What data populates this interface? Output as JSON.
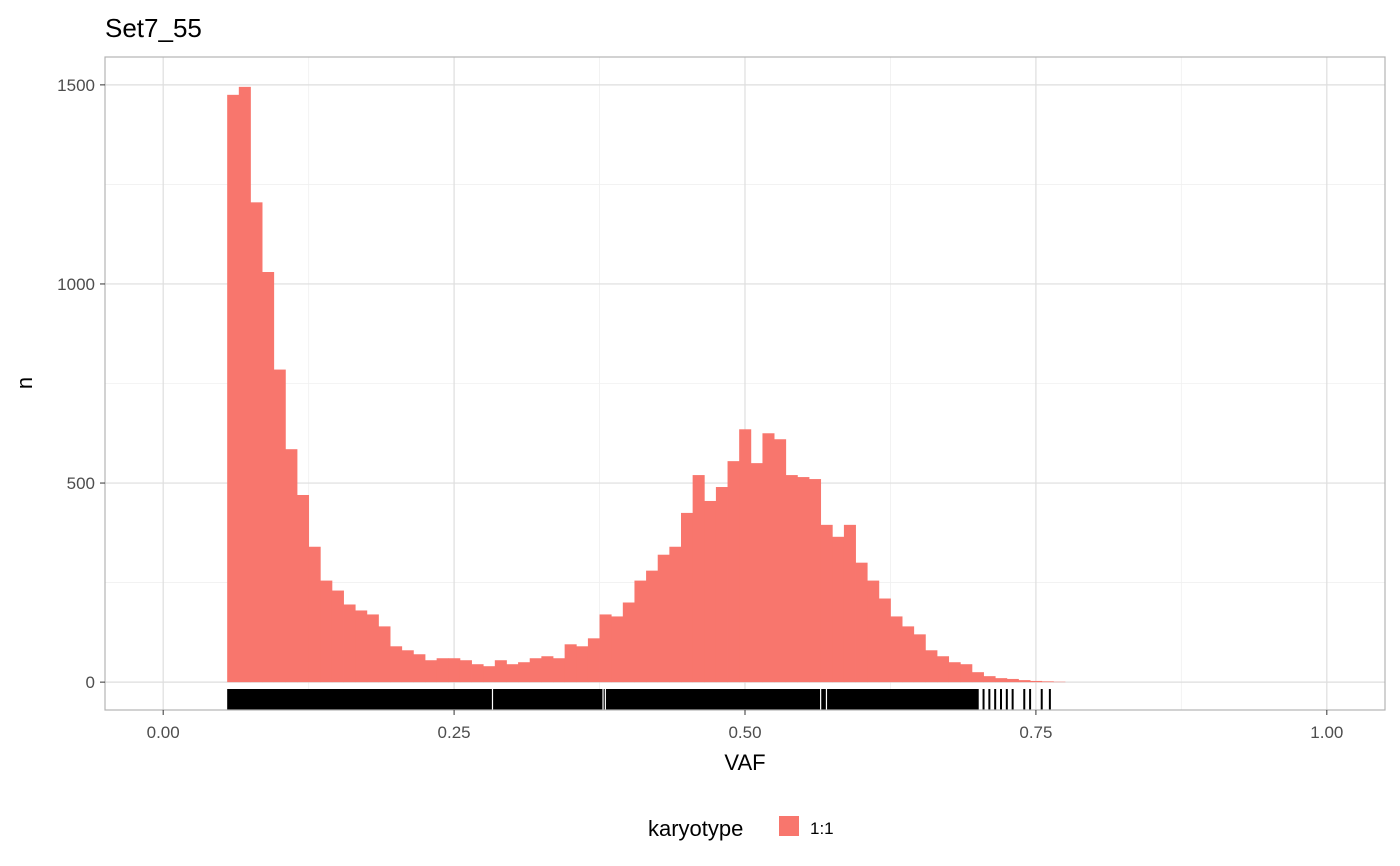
{
  "chart_data": {
    "type": "histogram",
    "title": "Set7_55",
    "xlabel": "VAF",
    "ylabel": "n",
    "xlim": [
      -0.05,
      1.05
    ],
    "ylim": [
      -70,
      1570
    ],
    "x_ticks": [
      0,
      0.25,
      0.5,
      0.75,
      1.0
    ],
    "x_tick_labels": [
      "0.00",
      "0.25",
      "0.50",
      "0.75",
      "1.00"
    ],
    "y_ticks": [
      0,
      500,
      1000,
      1500
    ],
    "y_tick_labels": [
      "0",
      "500",
      "1000",
      "1500"
    ],
    "grid": true,
    "bin_width": 0.01,
    "bins_start": 0.055,
    "bar_color": "#F8766D",
    "counts": [
      1475,
      1495,
      1205,
      1030,
      785,
      585,
      470,
      340,
      255,
      230,
      195,
      180,
      170,
      140,
      90,
      80,
      70,
      55,
      60,
      60,
      55,
      45,
      40,
      55,
      45,
      50,
      60,
      65,
      60,
      95,
      90,
      110,
      170,
      165,
      200,
      255,
      280,
      320,
      340,
      425,
      520,
      455,
      490,
      555,
      635,
      550,
      625,
      610,
      520,
      515,
      510,
      395,
      365,
      395,
      300,
      255,
      210,
      165,
      140,
      120,
      80,
      65,
      50,
      45,
      25,
      15,
      10,
      8,
      5,
      3,
      2,
      1
    ],
    "rug": {
      "color": "#000000",
      "from": 0.055,
      "to": 0.765,
      "ticks": [
        0.7,
        0.705,
        0.71,
        0.715,
        0.72,
        0.725,
        0.73,
        0.74,
        0.745,
        0.755,
        0.762
      ]
    },
    "legend": {
      "title": "karyotype",
      "position": "bottom",
      "items": [
        {
          "label": "1:1",
          "color": "#F8766D"
        }
      ]
    }
  }
}
